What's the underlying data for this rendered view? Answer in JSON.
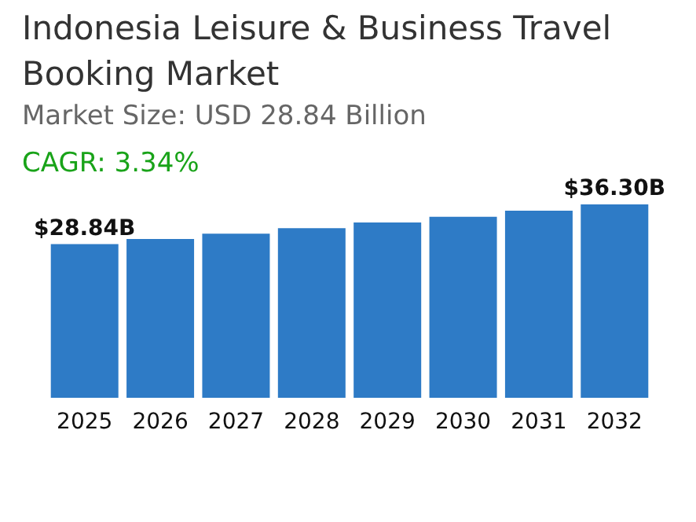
{
  "chart_data": {
    "type": "bar",
    "title": "Indonesia Leisure & Business Travel Booking Market",
    "subtitle": "Market Size: USD 28.84 Billion",
    "annotations": [
      "CAGR: 3.34%"
    ],
    "categories": [
      "2025",
      "2026",
      "2027",
      "2028",
      "2029",
      "2030",
      "2031",
      "2032"
    ],
    "values": [
      28.84,
      29.8,
      30.8,
      31.83,
      32.89,
      33.99,
      35.12,
      36.3
    ],
    "value_labels": [
      "$28.84B",
      null,
      null,
      null,
      null,
      null,
      null,
      "$36.30B"
    ],
    "color": "#2e7bc6"
  }
}
